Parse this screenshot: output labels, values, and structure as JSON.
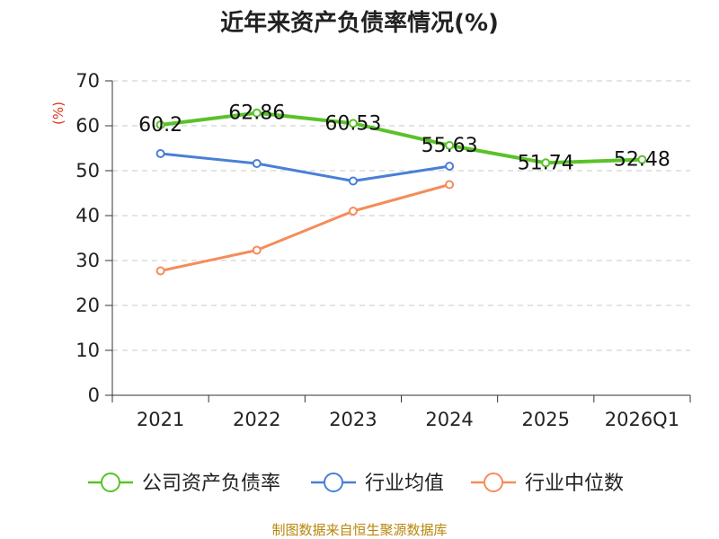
{
  "chart_data": {
    "type": "line",
    "title": "近年来资产负债率情况(%)",
    "ylabel": "(%)",
    "xlabel": "",
    "categories": [
      "2021",
      "2022",
      "2023",
      "2024",
      "2025",
      "2026Q1"
    ],
    "ylim": [
      0,
      70
    ],
    "yticks": [
      "0",
      "10",
      "20",
      "30",
      "40",
      "50",
      "60",
      "70"
    ],
    "grid": true,
    "legend_position": "bottom",
    "series": [
      {
        "name": "公司资产负债率",
        "color": "#5ac229",
        "values": [
          60.2,
          62.86,
          60.53,
          55.63,
          51.74,
          52.48
        ],
        "labels": [
          "60.2",
          "62.86",
          "60.53",
          "55.63",
          "51.74",
          "52.48"
        ]
      },
      {
        "name": "行业均值",
        "color": "#4a7fd6",
        "values": [
          53.8,
          51.6,
          47.7,
          51.0,
          null,
          null
        ]
      },
      {
        "name": "行业中位数",
        "color": "#f58c5a",
        "values": [
          27.7,
          32.3,
          41.0,
          46.9,
          null,
          null
        ]
      }
    ]
  },
  "source": "制图数据来自恒生聚源数据库"
}
